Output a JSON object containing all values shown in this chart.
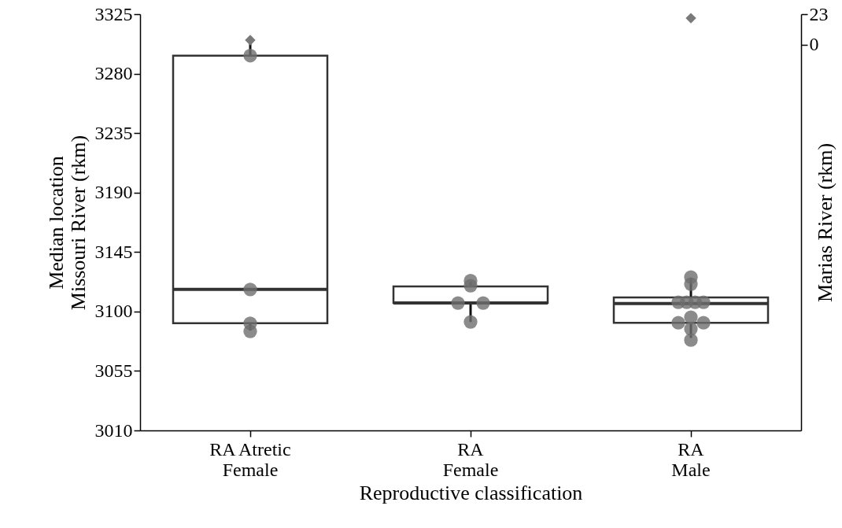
{
  "chart_data": {
    "type": "box",
    "xlabel": "Reproductive classification",
    "ylabel": "Median location\nMissouri River (rkm)",
    "y2label": "Marias River (rkm)",
    "categories": [
      "RA Atretic Female",
      "RA Female",
      "RA Male"
    ],
    "boxes": [
      {
        "low": 3085.6,
        "q1": 3091.1,
        "median": 3116.7,
        "q3": 3293.6,
        "high": 3306
      },
      {
        "low": 3092.1,
        "q1": 3106.4,
        "median": 3106.4,
        "q3": 3118.9,
        "high": 3122.5
      },
      {
        "low": 3080,
        "q1": 3091.5,
        "median": 3106,
        "q3": 3110.6,
        "high": 3125.5
      }
    ],
    "series": [
      {
        "type": "scatter",
        "marker": "circle",
        "color": "#6e6e6e",
        "x": [
          "RA Atretic Female",
          "RA Atretic Female",
          "RA Atretic Female",
          "RA Atretic Female",
          "RA Female",
          "RA Female",
          "RA Female",
          "RA Female",
          "RA Female",
          "RA Male",
          "RA Male",
          "RA Male",
          "RA Male",
          "RA Male",
          "RA Male",
          "RA Male",
          "RA Male",
          "RA Male",
          "RA Male",
          "RA Male"
        ],
        "values": [
          3293.6,
          3116.7,
          3091.1,
          3085,
          3123.3,
          3119.5,
          3106.4,
          3106.4,
          3092.1,
          3126,
          3120.7,
          3107,
          3107,
          3107,
          3107,
          3091.5,
          3095.7,
          3091.5,
          3086.8,
          3078.4
        ]
      },
      {
        "type": "scatter",
        "marker": "diamond",
        "axis": "y2",
        "color": "#7a7a7a",
        "x": [
          "RA Atretic Female",
          "RA Male"
        ],
        "values": [
          3.5,
          20
        ]
      }
    ],
    "ylim": [
      3010,
      3325
    ],
    "yticks": [
      3010,
      3055,
      3100,
      3145,
      3190,
      3235,
      3280,
      3325
    ],
    "y2lim": [
      -289,
      23
    ],
    "y2ticks": [
      0,
      23
    ]
  }
}
